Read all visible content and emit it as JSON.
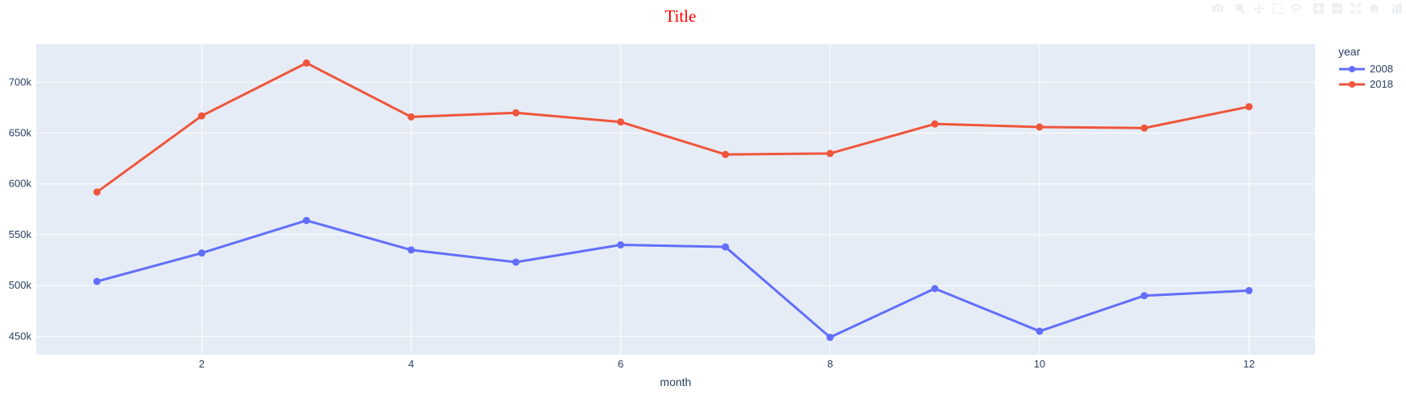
{
  "title": "Title",
  "title_color": "#ff0000",
  "modebar": {
    "groups": [
      [
        "camera-icon"
      ],
      [
        "zoom-icon",
        "pan-icon",
        "box-select-icon",
        "lasso-select-icon"
      ],
      [
        "zoom-in-icon",
        "zoom-out-icon",
        "autoscale-icon",
        "reset-axes-icon"
      ],
      [
        "plotly-logo-icon"
      ]
    ]
  },
  "chart_data": {
    "type": "line",
    "title": "Title",
    "xlabel": "month",
    "legend": {
      "title": "year",
      "position": "right"
    },
    "x": [
      1,
      2,
      3,
      4,
      5,
      6,
      7,
      8,
      9,
      10,
      11,
      12
    ],
    "xticks": [
      2,
      4,
      6,
      8,
      10,
      12
    ],
    "yticks": [
      450,
      500,
      550,
      600,
      650,
      700
    ],
    "ytick_suffix": "k",
    "xlim": [
      0.42,
      12.63
    ],
    "ylim": [
      432,
      737.5
    ],
    "grid": true,
    "plot_bg": "#e5ecf6",
    "grid_color": "#ffffff",
    "tick_color": "#2a3f5f",
    "series": [
      {
        "name": "2008",
        "color": "#636efa",
        "values": [
          504,
          532,
          564,
          535,
          523,
          540,
          538,
          449,
          497,
          455,
          490,
          495
        ]
      },
      {
        "name": "2018",
        "color": "#ef553b",
        "values": [
          592,
          667,
          719,
          666,
          670,
          661,
          629,
          630,
          659,
          656,
          655,
          676
        ]
      }
    ]
  }
}
